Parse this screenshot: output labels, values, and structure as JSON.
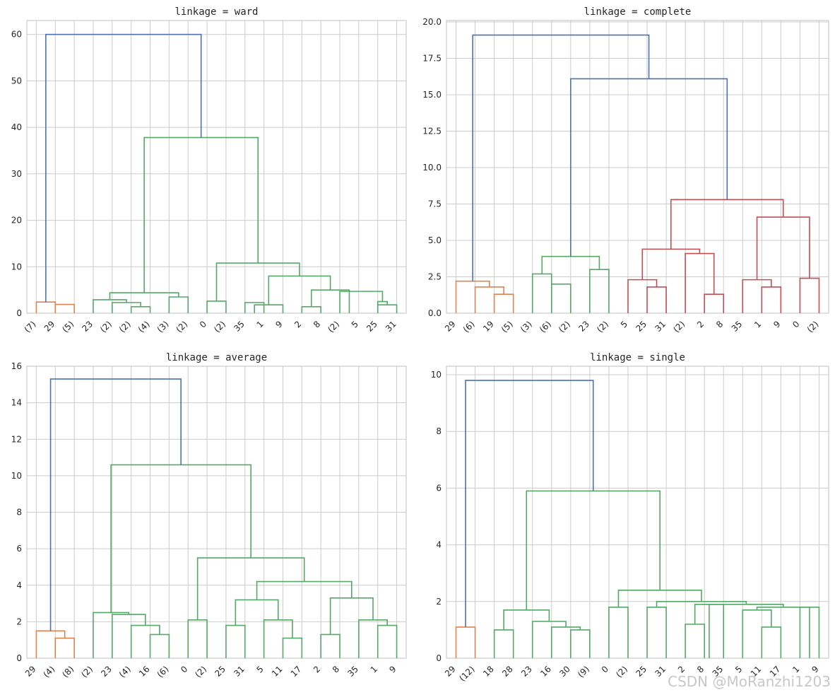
{
  "watermark": "CSDN @MoRanzhi1203",
  "colors": {
    "above": "#4c72b0",
    "orange": "#dd8452",
    "green": "#55a868",
    "red": "#c44e52",
    "grid": "#cccccc"
  },
  "chart_data": [
    {
      "type": "dendrogram",
      "title": "linkage = ward",
      "ylim": [
        0,
        63
      ],
      "yticks": [
        0,
        10,
        20,
        30,
        40,
        50,
        60
      ],
      "ytick_labels": [
        "0",
        "10",
        "20",
        "30",
        "40",
        "50",
        "60"
      ],
      "leaves": [
        "(7)",
        "29",
        "(5)",
        "23",
        "(2)",
        "(2)",
        "(4)",
        "(3)",
        "(2)",
        "0",
        "(2)",
        "35",
        "1",
        "9",
        "2",
        "8",
        "(2)",
        "5",
        "25",
        "31"
      ],
      "links": [
        {
          "l": 0,
          "r": 1,
          "h": 2.4,
          "c": "orange"
        },
        {
          "l": 1,
          "r": 2,
          "h": 1.9,
          "c": "orange"
        },
        {
          "l": 5,
          "r": 6,
          "h": 1.4,
          "c": "green"
        },
        {
          "l": 4,
          "r": 5.5,
          "h": 2.3,
          "c": "green"
        },
        {
          "l": 3,
          "r": 4.75,
          "h": 2.9,
          "c": "green"
        },
        {
          "l": 7,
          "r": 8,
          "h": 3.5,
          "c": "green"
        },
        {
          "l": 3.875,
          "r": 7.5,
          "h": 4.4,
          "c": "green"
        },
        {
          "l": 9,
          "r": 10,
          "h": 2.6,
          "c": "green"
        },
        {
          "l": 11,
          "r": 12,
          "h": 2.3,
          "c": "green"
        },
        {
          "l": 11.5,
          "r": 13,
          "h": 1.8,
          "c": "green"
        },
        {
          "l": 14,
          "r": 15,
          "h": 1.4,
          "c": "green"
        },
        {
          "l": 18,
          "r": 19,
          "h": 1.8,
          "c": "green"
        },
        {
          "l": 18,
          "r": 18.5,
          "h": 2.5,
          "c": "green"
        },
        {
          "l": 16,
          "r": 18.25,
          "h": 4.7,
          "c": "green"
        },
        {
          "l": 14.5,
          "r": 16.5,
          "h": 5.0,
          "c": "green"
        },
        {
          "l": 12.25,
          "r": 15.5,
          "h": 8.0,
          "c": "green"
        },
        {
          "l": 9.5,
          "r": 13.875,
          "h": 10.8,
          "c": "green"
        },
        {
          "l": 5.6875,
          "r": 11.6875,
          "h": 37.8,
          "c": "green"
        },
        {
          "l": 0.5,
          "r": 8.6875,
          "h": 60.0,
          "c": "above"
        }
      ]
    },
    {
      "type": "dendrogram",
      "title": "linkage = complete",
      "ylim": [
        0,
        20.1
      ],
      "yticks": [
        0,
        2.5,
        5,
        7.5,
        10,
        12.5,
        15,
        17.5,
        20
      ],
      "ytick_labels": [
        "0.0",
        "2.5",
        "5.0",
        "7.5",
        "10.0",
        "12.5",
        "15.0",
        "17.5",
        "20.0"
      ],
      "leaves": [
        "29",
        "(6)",
        "19",
        "(5)",
        "(3)",
        "(6)",
        "(2)",
        "23",
        "(2)",
        "5",
        "25",
        "31",
        "(2)",
        "2",
        "8",
        "35",
        "1",
        "9",
        "0",
        "(2)"
      ],
      "links": [
        {
          "l": 2,
          "r": 3,
          "h": 1.3,
          "c": "orange"
        },
        {
          "l": 1,
          "r": 2.5,
          "h": 1.8,
          "c": "orange"
        },
        {
          "l": 0,
          "r": 1.75,
          "h": 2.2,
          "c": "orange"
        },
        {
          "l": 4,
          "r": 5,
          "h": 2.7,
          "c": "green"
        },
        {
          "l": 5,
          "r": 6,
          "h": 2.0,
          "c": "green"
        },
        {
          "l": 7,
          "r": 8,
          "h": 3.0,
          "c": "green"
        },
        {
          "l": 4.5,
          "r": 7.5,
          "h": 3.9,
          "c": "green"
        },
        {
          "l": 10,
          "r": 11,
          "h": 1.8,
          "c": "red"
        },
        {
          "l": 9,
          "r": 10.5,
          "h": 2.3,
          "c": "red"
        },
        {
          "l": 13,
          "r": 14,
          "h": 1.3,
          "c": "red"
        },
        {
          "l": 12,
          "r": 13.5,
          "h": 4.1,
          "c": "red"
        },
        {
          "l": 9.75,
          "r": 12.75,
          "h": 4.4,
          "c": "red"
        },
        {
          "l": 16,
          "r": 17,
          "h": 1.8,
          "c": "red"
        },
        {
          "l": 15,
          "r": 16.5,
          "h": 2.3,
          "c": "red"
        },
        {
          "l": 18,
          "r": 19,
          "h": 2.4,
          "c": "red"
        },
        {
          "l": 15.75,
          "r": 18.5,
          "h": 6.6,
          "c": "red"
        },
        {
          "l": 11.25,
          "r": 17.125,
          "h": 7.8,
          "c": "red"
        },
        {
          "l": 6,
          "r": 14.1875,
          "h": 16.1,
          "c": "above"
        },
        {
          "l": 0.875,
          "r": 10.09375,
          "h": 19.1,
          "c": "above"
        }
      ]
    },
    {
      "type": "dendrogram",
      "title": "linkage = average",
      "ylim": [
        0,
        16
      ],
      "yticks": [
        0,
        2,
        4,
        6,
        8,
        10,
        12,
        14,
        16
      ],
      "ytick_labels": [
        "0",
        "2",
        "4",
        "6",
        "8",
        "10",
        "12",
        "14",
        "16"
      ],
      "leaves": [
        "29",
        "(4)",
        "(8)",
        "(2)",
        "23",
        "(4)",
        "16",
        "(6)",
        "0",
        "(2)",
        "25",
        "31",
        "5",
        "11",
        "17",
        "2",
        "8",
        "35",
        "1",
        "9"
      ],
      "links": [
        {
          "l": 1,
          "r": 2,
          "h": 1.1,
          "c": "orange"
        },
        {
          "l": 0,
          "r": 1.5,
          "h": 1.5,
          "c": "orange"
        },
        {
          "l": 6,
          "r": 7,
          "h": 1.3,
          "c": "green"
        },
        {
          "l": 5,
          "r": 6.5,
          "h": 1.8,
          "c": "green"
        },
        {
          "l": 4,
          "r": 5.75,
          "h": 2.4,
          "c": "green"
        },
        {
          "l": 3,
          "r": 4.875,
          "h": 2.5,
          "c": "green"
        },
        {
          "l": 8,
          "r": 9,
          "h": 2.1,
          "c": "green"
        },
        {
          "l": 10,
          "r": 11,
          "h": 1.8,
          "c": "green"
        },
        {
          "l": 13,
          "r": 14,
          "h": 1.1,
          "c": "green"
        },
        {
          "l": 12,
          "r": 13.5,
          "h": 2.1,
          "c": "green"
        },
        {
          "l": 10.5,
          "r": 12.75,
          "h": 3.2,
          "c": "green"
        },
        {
          "l": 15,
          "r": 16,
          "h": 1.3,
          "c": "green"
        },
        {
          "l": 18,
          "r": 19,
          "h": 1.8,
          "c": "green"
        },
        {
          "l": 17,
          "r": 18.5,
          "h": 2.1,
          "c": "green"
        },
        {
          "l": 15.5,
          "r": 17.75,
          "h": 3.3,
          "c": "green"
        },
        {
          "l": 11.625,
          "r": 16.625,
          "h": 4.2,
          "c": "green"
        },
        {
          "l": 8.5,
          "r": 14.125,
          "h": 5.5,
          "c": "green"
        },
        {
          "l": 3.9375,
          "r": 11.3125,
          "h": 10.6,
          "c": "green"
        },
        {
          "l": 0.75,
          "r": 7.625,
          "h": 15.3,
          "c": "above"
        }
      ]
    },
    {
      "type": "dendrogram",
      "title": "linkage = single",
      "ylim": [
        0,
        10.3
      ],
      "yticks": [
        0,
        2,
        4,
        6,
        8,
        10
      ],
      "ytick_labels": [
        "0",
        "2",
        "4",
        "6",
        "8",
        "10"
      ],
      "leaves": [
        "29",
        "(12)",
        "18",
        "28",
        "23",
        "16",
        "30",
        "(9)",
        "0",
        "(2)",
        "25",
        "31",
        "2",
        "8",
        "35",
        "5",
        "11",
        "17",
        "1",
        "9"
      ],
      "links": [
        {
          "l": 0,
          "r": 1,
          "h": 1.1,
          "c": "orange"
        },
        {
          "l": 2,
          "r": 3,
          "h": 1.0,
          "c": "green"
        },
        {
          "l": 6,
          "r": 7,
          "h": 1.0,
          "c": "green"
        },
        {
          "l": 5,
          "r": 6.5,
          "h": 1.1,
          "c": "green"
        },
        {
          "l": 4,
          "r": 5.75,
          "h": 1.3,
          "c": "green"
        },
        {
          "l": 2.5,
          "r": 4.875,
          "h": 1.7,
          "c": "green"
        },
        {
          "l": 8,
          "r": 9,
          "h": 1.8,
          "c": "green"
        },
        {
          "l": 10,
          "r": 11,
          "h": 1.8,
          "c": "green"
        },
        {
          "l": 12,
          "r": 13,
          "h": 1.2,
          "c": "green"
        },
        {
          "l": 12.5,
          "r": 14,
          "h": 1.9,
          "c": "green"
        },
        {
          "l": 16,
          "r": 17,
          "h": 1.1,
          "c": "green"
        },
        {
          "l": 15,
          "r": 16.5,
          "h": 1.7,
          "c": "green"
        },
        {
          "l": 18,
          "r": 19,
          "h": 1.8,
          "c": "green"
        },
        {
          "l": 15.75,
          "r": 18.5,
          "h": 1.8,
          "c": "green"
        },
        {
          "l": 13.25,
          "r": 17.125,
          "h": 1.9,
          "c": "green"
        },
        {
          "l": 10.5,
          "r": 15.1875,
          "h": 2.0,
          "c": "green"
        },
        {
          "l": 8.5,
          "r": 12.84375,
          "h": 2.4,
          "c": "green"
        },
        {
          "l": 3.6875,
          "r": 10.671875,
          "h": 5.9,
          "c": "green"
        },
        {
          "l": 0.5,
          "r": 7.1796875,
          "h": 9.8,
          "c": "above"
        }
      ]
    }
  ]
}
